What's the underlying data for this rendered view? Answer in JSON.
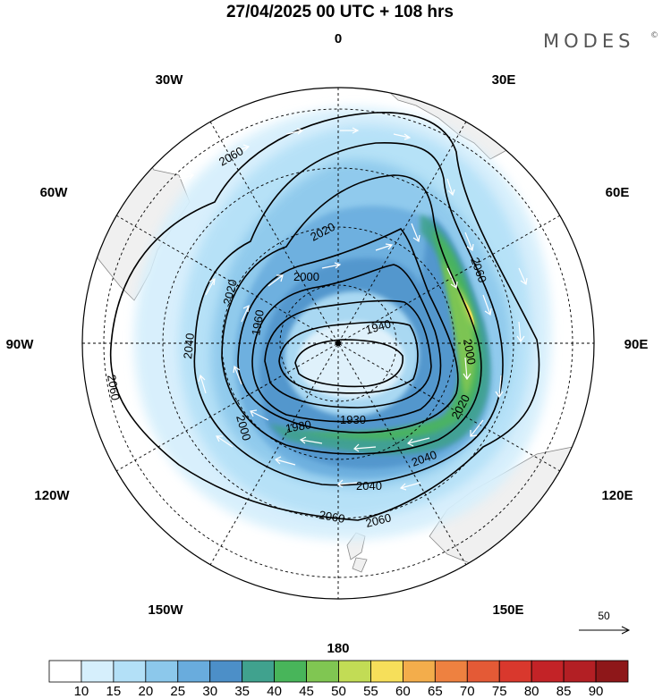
{
  "header": {
    "title": "27/04/2025  00 UTC  + 108 hrs",
    "brand": "MODES",
    "brand_mark": "©"
  },
  "map": {
    "projection": "south polar stereographic",
    "meridian_labels": [
      "0",
      "30E",
      "60E",
      "90E",
      "120E",
      "150E",
      "180",
      "150W",
      "120W",
      "90W",
      "60W",
      "30W"
    ],
    "contour_labels": [
      "2060",
      "2060",
      "2060",
      "2060",
      "2060",
      "2040",
      "2040",
      "2040",
      "2020",
      "2020",
      "2020",
      "2000",
      "2000",
      "2000",
      "2000",
      "1980",
      "1960",
      "1940",
      "1930"
    ],
    "land_color": "#f0f0f0",
    "coast_color": "#888888",
    "contour_color": "#000000",
    "vector_color": "#ffffff"
  },
  "legend": {
    "vector_reference_label": "50",
    "colorbar_ticks": [
      "10",
      "15",
      "20",
      "25",
      "30",
      "35",
      "40",
      "45",
      "50",
      "55",
      "60",
      "65",
      "70",
      "75",
      "80",
      "85",
      "90"
    ],
    "colorbar_colors": [
      "#ffffff",
      "#d6effc",
      "#b3e0f7",
      "#8cc8eb",
      "#69acdd",
      "#4c8fc8",
      "#40a28e",
      "#48b55a",
      "#80c652",
      "#c2dc55",
      "#f6df5a",
      "#f3ad4b",
      "#ee8140",
      "#e45a36",
      "#d9382d",
      "#c32327",
      "#b31f24",
      "#8e1719"
    ]
  }
}
